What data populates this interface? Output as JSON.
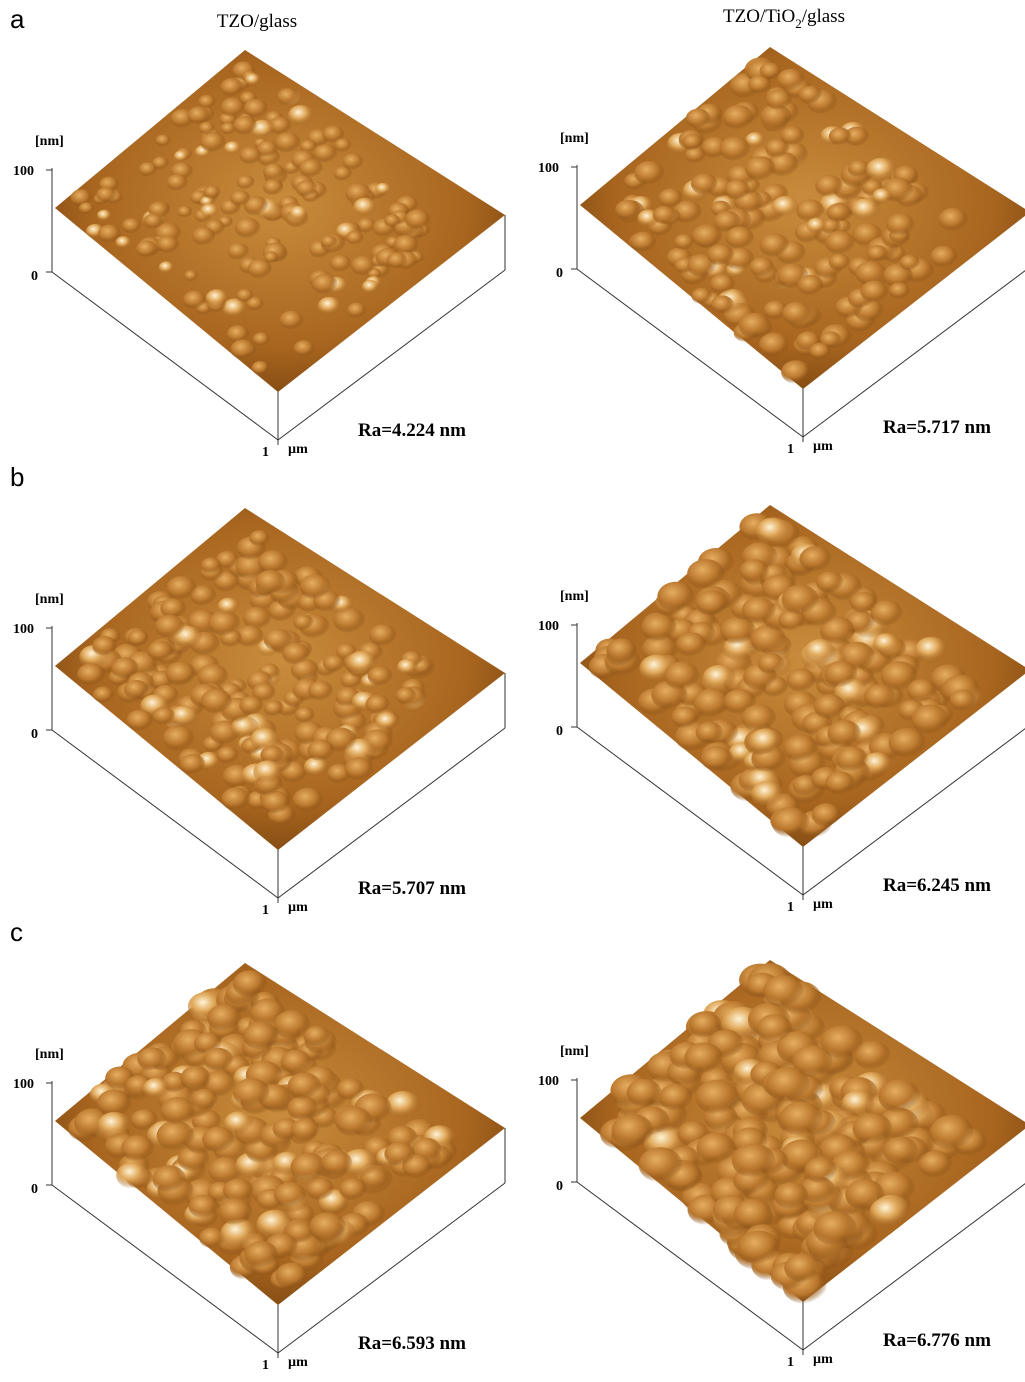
{
  "column_titles": [
    {
      "parts": [
        "TZO/glass"
      ]
    },
    {
      "parts": [
        "TZO/TiO",
        "2",
        "/glass"
      ]
    }
  ],
  "rows": [
    {
      "label": "a",
      "panels": [
        {
          "z_unit": "[nm]",
          "z_max": "100",
          "z_min": "0",
          "xy_max": "1",
          "xy_unit": "µm",
          "ra": "Ra=4.224 nm"
        },
        {
          "z_unit": "[nm]",
          "z_max": "100",
          "z_min": "0",
          "xy_max": "1",
          "xy_unit": "µm",
          "ra": "Ra=5.717 nm"
        }
      ]
    },
    {
      "label": "b",
      "panels": [
        {
          "z_unit": "[nm]",
          "z_max": "100",
          "z_min": "0",
          "xy_max": "1",
          "xy_unit": "µm",
          "ra": "Ra=5.707 nm"
        },
        {
          "z_unit": "[nm]",
          "z_max": "100",
          "z_min": "0",
          "xy_max": "1",
          "xy_unit": "µm",
          "ra": "Ra=6.245 nm"
        }
      ]
    },
    {
      "label": "c",
      "panels": [
        {
          "z_unit": "[nm]",
          "z_max": "100",
          "z_min": "0",
          "xy_max": "1",
          "xy_unit": "µm",
          "ra": "Ra=6.593 nm"
        },
        {
          "z_unit": "[nm]",
          "z_max": "100",
          "z_min": "0",
          "xy_max": "1",
          "xy_unit": "µm",
          "ra": "Ra=6.776 nm"
        }
      ]
    }
  ]
}
